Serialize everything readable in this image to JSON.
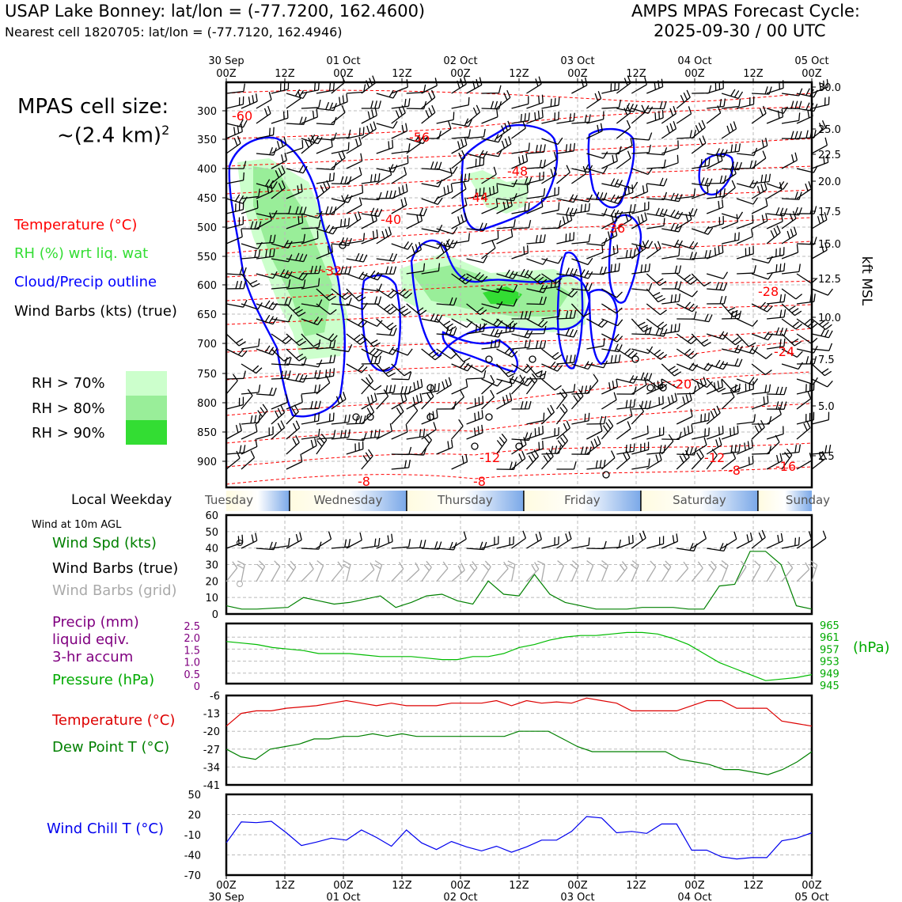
{
  "header": {
    "station": "USAP Lake Bonney: lat/lon = (-77.7200, 162.4600)",
    "nearest": "Nearest cell 1820705: lat/lon = (-77.7120, 162.4946)",
    "cycle_title": "AMPS MPAS Forecast Cycle:",
    "cycle_time": "2025-09-30 / 00 UTC"
  },
  "cell_size": {
    "line1": "MPAS cell size:",
    "line2": "~(2.4 km)",
    "sup": "2"
  },
  "legend": {
    "temperature": "Temperature (°C)",
    "rh": "RH (%) wrt liq. wat",
    "cloud": "Cloud/Precip outline",
    "barbs": "Wind Barbs (kts) (true)",
    "rh70": "RH > 70%",
    "rh80": "RH > 80%",
    "rh90": "RH > 90%",
    "colors": {
      "temp": "#ff0000",
      "rh": "#33dd33",
      "cloud": "#0000ff",
      "rh70": "#ccffcc",
      "rh80": "#99ee99",
      "rh90": "#33dd33"
    }
  },
  "time_axis": {
    "top_ticks": [
      "00Z",
      "12Z",
      "00Z",
      "12Z",
      "00Z",
      "12Z",
      "00Z",
      "12Z",
      "00Z",
      "12Z",
      "00Z"
    ],
    "day_labels": [
      "30 Sep",
      "01 Oct",
      "02 Oct",
      "03 Oct",
      "04 Oct",
      "05 Oct"
    ]
  },
  "weekday": {
    "label": "Local Weekday",
    "days": [
      "Tuesday",
      "Wednesday",
      "Thursday",
      "Friday",
      "Saturday",
      "Sunday"
    ]
  },
  "side_labels": {
    "wind_10m": "Wind at 10m AGL",
    "wind_spd": "Wind Spd (kts)",
    "barbs_true": "Wind Barbs (true)",
    "barbs_grid": "Wind Barbs (grid)",
    "precip1": "Precip (mm)",
    "precip2": "liquid eqiv.",
    "precip3": "3-hr accum",
    "pressure": "Pressure (hPa)",
    "temperature": "Temperature (°C)",
    "dewpoint": "Dew Point T (°C)",
    "windchill": "Wind Chill T (°C)"
  },
  "chart_data": [
    {
      "type": "contour",
      "y_left_ticks": [
        "300",
        "350",
        "400",
        "450",
        "500",
        "550",
        "600",
        "650",
        "700",
        "750",
        "800",
        "850",
        "900"
      ],
      "y_right_label": "kft MSL",
      "y_right_ticks": [
        "30.0",
        "25.0",
        "22.5",
        "20.0",
        "17.5",
        "15.0",
        "12.5",
        "10.0",
        "7.5",
        "5.0",
        "2.5"
      ],
      "temp_labels": [
        {
          "t": 0.05,
          "p": 310,
          "v": "-60"
        },
        {
          "t": 0.11,
          "p": 357,
          "v": "-56"
        },
        {
          "t": 0.17,
          "p": 415,
          "v": "-48"
        },
        {
          "t": 0.16,
          "p": 447,
          "v": "-44"
        },
        {
          "t": 0.105,
          "p": 490,
          "v": "-40"
        },
        {
          "t": 0.17,
          "p": 508,
          "v": "-36"
        },
        {
          "t": 0.065,
          "p": 578,
          "v": "-32"
        },
        {
          "t": 0.23,
          "p": 622,
          "v": "-28"
        },
        {
          "t": 0.23,
          "p": 703,
          "v": "-24"
        },
        {
          "t": 0.2,
          "p": 767,
          "v": "-20"
        },
        {
          "t": 0.2,
          "p": 896,
          "v": "-16"
        },
        {
          "t": 0.2,
          "p": 885,
          "v": "-12"
        },
        {
          "t": 0.14,
          "p": 925,
          "v": "-12"
        },
        {
          "t": 0.2,
          "p": 910,
          "v": "-8"
        },
        {
          "t": 0.1,
          "p": 940,
          "v": "-8"
        },
        {
          "t": 0.17,
          "p": 940,
          "v": "-8"
        }
      ]
    },
    {
      "type": "line",
      "ylim": [
        0,
        60
      ],
      "y_ticks": [
        "0",
        "10",
        "20",
        "30",
        "40",
        "50",
        "60"
      ],
      "series": [
        {
          "values": [
            5,
            3,
            3,
            3.5,
            4,
            10,
            8,
            6,
            7,
            9,
            11,
            4,
            7,
            11,
            12,
            8,
            6,
            20,
            12,
            11,
            24,
            12,
            7,
            5,
            3,
            3,
            3,
            4,
            4,
            4,
            3,
            3,
            17,
            18,
            38,
            38,
            30,
            5,
            3
          ]
        }
      ]
    },
    {
      "type": "line",
      "ylim": [
        945,
        965
      ],
      "y_ticks_right": [
        "945",
        "949",
        "953",
        "957",
        "961",
        "965"
      ],
      "y_ticks_left": [
        "0",
        "0.5",
        "1.0",
        "1.5",
        "2.0",
        "2.5"
      ],
      "series": [
        {
          "values": [
            959,
            958.5,
            958,
            957,
            956.5,
            956,
            955,
            955,
            955,
            954.5,
            954,
            954,
            954,
            953.5,
            953,
            953,
            954,
            954,
            955,
            957,
            958,
            959.5,
            960.5,
            961,
            961,
            961.5,
            962,
            962,
            961.5,
            960,
            958,
            955,
            952,
            950,
            948,
            946,
            946.5,
            947,
            948
          ]
        }
      ]
    },
    {
      "type": "line",
      "ylim": [
        -41,
        -6
      ],
      "y_ticks": [
        "-6",
        "-13",
        "-20",
        "-27",
        "-34",
        "-41"
      ],
      "series": [
        {
          "values": [
            -18,
            -13,
            -12,
            -12,
            -11,
            -10.5,
            -10,
            -9,
            -8,
            -9,
            -10,
            -9,
            -10,
            -10,
            -10,
            -9,
            -9,
            -9,
            -8,
            -10,
            -8,
            -9,
            -8.5,
            -9,
            -7,
            -8,
            -9,
            -12,
            -12,
            -12,
            -12,
            -10,
            -8,
            -8,
            -11,
            -11,
            -11,
            -16,
            -17,
            -18
          ]
        },
        {
          "values": [
            -27,
            -30,
            -31,
            -27,
            -26,
            -25,
            -23,
            -23,
            -22,
            -22,
            -21,
            -22,
            -21,
            -22,
            -22,
            -22,
            -22,
            -22,
            -22,
            -22,
            -20,
            -20,
            -20,
            -23,
            -26,
            -28,
            -28,
            -28,
            -28,
            -28,
            -28,
            -31,
            -32,
            -33,
            -35,
            -35,
            -36,
            -37,
            -35,
            -32,
            -28
          ]
        }
      ]
    },
    {
      "type": "line",
      "ylim": [
        -70,
        50
      ],
      "y_ticks": [
        "50",
        "20",
        "-10",
        "-40",
        "-70"
      ],
      "series": [
        {
          "values": [
            -22,
            9,
            8,
            10,
            -7,
            -26,
            -21,
            -15,
            -18,
            -3,
            -14,
            -27,
            -3,
            -22,
            -32,
            -20,
            -28,
            -34,
            -27,
            -36,
            -28,
            -18,
            -18,
            -5,
            17,
            15,
            -7,
            -5,
            -8,
            6,
            6,
            -33,
            -33,
            -43,
            -46,
            -44,
            -44,
            -19,
            -15,
            -7
          ]
        }
      ]
    }
  ]
}
